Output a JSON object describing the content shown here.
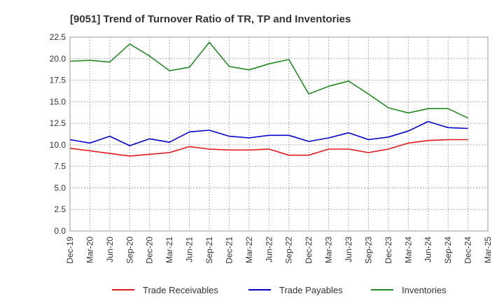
{
  "chart_data": {
    "type": "line",
    "title": "[9051]  Trend of Turnover Ratio of TR, TP and Inventories",
    "xlabel": "",
    "ylabel": "",
    "ylim": [
      0,
      22.5
    ],
    "yticks": [
      "0.0",
      "2.5",
      "5.0",
      "7.5",
      "10.0",
      "12.5",
      "15.0",
      "17.5",
      "20.0",
      "22.5"
    ],
    "x": [
      "Dec-19",
      "Mar-20",
      "Jun-20",
      "Sep-20",
      "Dec-20",
      "Mar-21",
      "Jun-21",
      "Sep-21",
      "Dec-21",
      "Mar-22",
      "Jun-22",
      "Sep-22",
      "Dec-22",
      "Mar-23",
      "Jun-23",
      "Sep-23",
      "Dec-23",
      "Mar-24",
      "Jun-24",
      "Sep-24",
      "Dec-24",
      "Mar-25"
    ],
    "grid": true,
    "legend": "bottom",
    "series": [
      {
        "name": "Trade Receivables",
        "color": "#e31a1c",
        "values": [
          9.6,
          9.3,
          9.0,
          8.7,
          8.9,
          9.1,
          9.8,
          9.5,
          9.4,
          9.4,
          9.5,
          8.8,
          8.8,
          9.5,
          9.5,
          9.1,
          9.5,
          10.2,
          10.5,
          10.6,
          10.6,
          null
        ]
      },
      {
        "name": "Trade Payables",
        "color": "#0000cc",
        "values": [
          10.6,
          10.2,
          11.0,
          9.9,
          10.7,
          10.3,
          11.5,
          11.7,
          11.0,
          10.8,
          11.1,
          11.1,
          10.4,
          10.8,
          11.4,
          10.6,
          10.9,
          11.6,
          12.7,
          12.0,
          11.9,
          null
        ]
      },
      {
        "name": "Inventories",
        "color": "#228b22",
        "values": [
          19.7,
          19.8,
          19.6,
          21.7,
          20.3,
          18.6,
          19.0,
          21.9,
          19.1,
          18.7,
          19.4,
          19.9,
          15.9,
          16.8,
          17.4,
          15.9,
          14.3,
          13.7,
          14.2,
          14.2,
          13.1,
          null
        ]
      }
    ]
  }
}
